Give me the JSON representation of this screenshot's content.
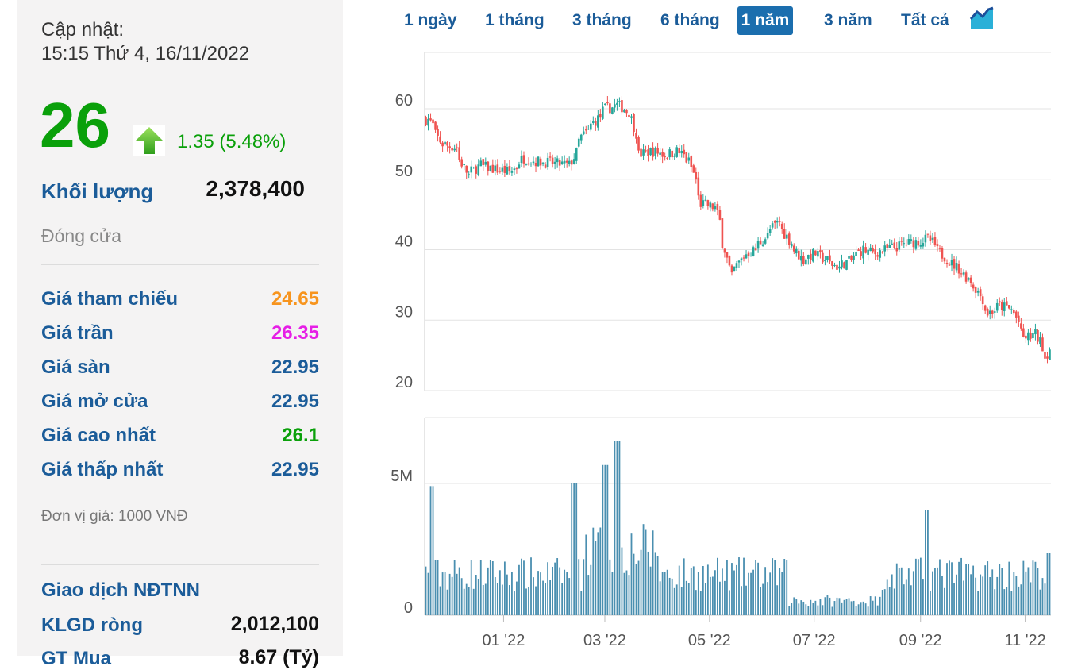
{
  "panel": {
    "update_label": "Cập nhật:",
    "update_time": "15:15 Thứ 4, 16/11/2022",
    "price": "26",
    "change": "1.35 (5.48%)",
    "volume_label": "Khối lượng",
    "volume_value": "2,378,400",
    "status": "Đóng cửa",
    "rows": [
      {
        "label": "Giá tham chiếu",
        "value": "24.65",
        "color": "#f7941d"
      },
      {
        "label": "Giá trần",
        "value": "26.35",
        "color": "#e61ee6"
      },
      {
        "label": "Giá sàn",
        "value": "22.95",
        "color": "#1b5c99"
      },
      {
        "label": "Giá mở cửa",
        "value": "22.95",
        "color": "#1b5c99"
      },
      {
        "label": "Giá cao nhất",
        "value": "26.1",
        "color": "#0aa00a"
      },
      {
        "label": "Giá thấp nhất",
        "value": "22.95",
        "color": "#1b5c99"
      }
    ],
    "unit": "Đơn vị giá: 1000 VNĐ",
    "foreign_title": "Giao dịch NĐTNN",
    "net_label": "KLGD ròng",
    "net_value": "2,012,100",
    "buy_label": "GT Mua",
    "buy_value": "8.67 (Tỷ)"
  },
  "range_buttons": [
    {
      "label": "1 ngày",
      "active": false
    },
    {
      "label": "1 tháng",
      "active": false
    },
    {
      "label": "3 tháng",
      "active": false
    },
    {
      "label": "6 tháng",
      "active": false
    },
    {
      "label": "1 năm",
      "active": true
    },
    {
      "label": "3 năm",
      "active": false
    },
    {
      "label": "Tất cả",
      "active": false
    }
  ],
  "colors": {
    "up": "#26a69a",
    "down": "#ef5350",
    "volume": "#4a8fb0",
    "accent": "#1b6eae"
  },
  "chart_data": [
    {
      "type": "candlestick",
      "ylim": [
        20,
        68
      ],
      "yticks": [
        "20",
        "30",
        "40",
        "50",
        "60"
      ],
      "grid": true,
      "xtick_labels": [
        "01 '22",
        "03 '22",
        "05 '22",
        "07 '22",
        "09 '22",
        "11 '22"
      ],
      "close_series": [
        [
          "2021-11-17",
          58.5
        ],
        [
          "2021-11-25",
          55.0
        ],
        [
          "2021-12-03",
          54.5
        ],
        [
          "2021-12-10",
          50.5
        ],
        [
          "2021-12-17",
          52.0
        ],
        [
          "2021-12-24",
          51.5
        ],
        [
          "2022-01-04",
          51.0
        ],
        [
          "2022-01-12",
          53.0
        ],
        [
          "2022-01-20",
          52.5
        ],
        [
          "2022-02-08",
          52.0
        ],
        [
          "2022-02-15",
          56.0
        ],
        [
          "2022-02-22",
          58.0
        ],
        [
          "2022-03-01",
          60.0
        ],
        [
          "2022-03-08",
          60.5
        ],
        [
          "2022-03-15",
          59.5
        ],
        [
          "2022-03-21",
          53.5
        ],
        [
          "2022-03-28",
          54.0
        ],
        [
          "2022-04-05",
          53.5
        ],
        [
          "2022-04-12",
          54.0
        ],
        [
          "2022-04-19",
          52.5
        ],
        [
          "2022-04-26",
          46.5
        ],
        [
          "2022-05-04",
          46.0
        ],
        [
          "2022-05-10",
          40.0
        ],
        [
          "2022-05-13",
          36.0
        ],
        [
          "2022-05-20",
          39.0
        ],
        [
          "2022-05-27",
          40.0
        ],
        [
          "2022-06-03",
          42.0
        ],
        [
          "2022-06-10",
          44.0
        ],
        [
          "2022-06-17",
          41.0
        ],
        [
          "2022-06-24",
          38.5
        ],
        [
          "2022-07-01",
          39.5
        ],
        [
          "2022-07-08",
          38.5
        ],
        [
          "2022-07-15",
          37.5
        ],
        [
          "2022-07-22",
          38.5
        ],
        [
          "2022-07-29",
          40.0
        ],
        [
          "2022-08-05",
          39.5
        ],
        [
          "2022-08-12",
          40.0
        ],
        [
          "2022-08-19",
          40.5
        ],
        [
          "2022-08-26",
          41.0
        ],
        [
          "2022-09-06",
          41.5
        ],
        [
          "2022-09-13",
          39.5
        ],
        [
          "2022-09-20",
          38.0
        ],
        [
          "2022-09-27",
          36.5
        ],
        [
          "2022-10-04",
          34.5
        ],
        [
          "2022-10-11",
          31.0
        ],
        [
          "2022-10-18",
          32.0
        ],
        [
          "2022-10-25",
          31.5
        ],
        [
          "2022-11-01",
          27.5
        ],
        [
          "2022-11-08",
          28.0
        ],
        [
          "2022-11-14",
          24.65
        ],
        [
          "2022-11-16",
          26.0
        ]
      ]
    },
    {
      "type": "bar",
      "series_name": "volume",
      "ylim": [
        0,
        7500000
      ],
      "yticks": [
        "0",
        "5M"
      ],
      "grid": true,
      "highlight_points": [
        [
          "2021-11-19",
          4900000
        ],
        [
          "2022-02-10",
          5000000
        ],
        [
          "2022-03-01",
          5700000
        ],
        [
          "2022-03-08",
          6600000
        ],
        [
          "2022-09-05",
          4000000
        ],
        [
          "2022-11-16",
          2378400
        ]
      ]
    }
  ]
}
